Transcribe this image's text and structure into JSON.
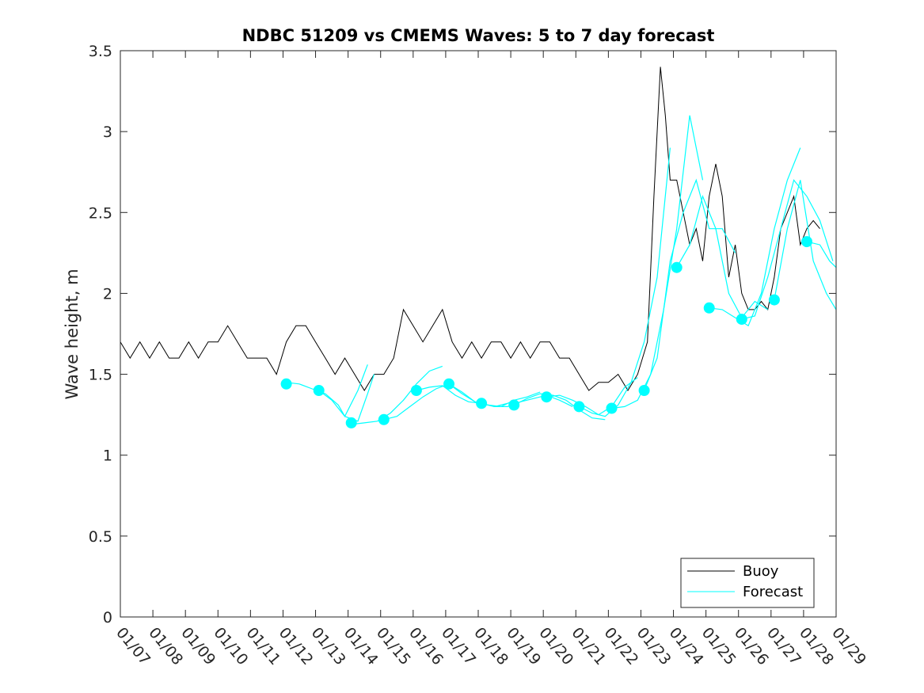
{
  "chart_data": {
    "type": "line",
    "title": "NDBC 51209 vs CMEMS Waves: 5 to 7 day forecast",
    "xlabel": "",
    "ylabel": "Wave height, m",
    "x_type": "date",
    "xlim": [
      0,
      22
    ],
    "ylim": [
      0,
      3.5
    ],
    "yticks": [
      0,
      0.5,
      1,
      1.5,
      2,
      2.5,
      3,
      3.5
    ],
    "ytick_labels": [
      "0",
      "0.5",
      "1",
      "1.5",
      "2",
      "2.5",
      "3",
      "3.5"
    ],
    "xticks": [
      0,
      1,
      2,
      3,
      4,
      5,
      6,
      7,
      8,
      9,
      10,
      11,
      12,
      13,
      14,
      15,
      16,
      17,
      18,
      19,
      20,
      21,
      22
    ],
    "xtick_labels": [
      "01/07",
      "01/08",
      "01/09",
      "01/10",
      "01/11",
      "01/12",
      "01/13",
      "01/14",
      "01/15",
      "01/16",
      "01/17",
      "01/18",
      "01/19",
      "01/20",
      "01/21",
      "01/22",
      "01/23",
      "01/24",
      "01/25",
      "01/26",
      "01/27",
      "01/28",
      "01/29"
    ],
    "x_note": "x values are days since 01/07",
    "legend": [
      "Buoy",
      "Forecast"
    ],
    "legend_position": "bottom-right",
    "colors": {
      "buoy": "#000000",
      "forecast": "#00ffff",
      "axes": "#262626"
    },
    "buoy": {
      "name": "Buoy",
      "x": [
        0,
        0.3,
        0.6,
        0.9,
        1.2,
        1.5,
        1.8,
        2.1,
        2.4,
        2.7,
        3.0,
        3.3,
        3.6,
        3.9,
        4.2,
        4.5,
        4.8,
        5.1,
        5.4,
        5.7,
        6.0,
        6.3,
        6.6,
        6.9,
        7.2,
        7.5,
        7.8,
        8.1,
        8.4,
        8.7,
        9.0,
        9.3,
        9.6,
        9.9,
        10.2,
        10.5,
        10.8,
        11.1,
        11.4,
        11.7,
        12.0,
        12.3,
        12.6,
        12.9,
        13.2,
        13.5,
        13.8,
        14.1,
        14.4,
        14.7,
        15.0,
        15.3,
        15.6,
        15.9,
        16.2,
        16.4,
        16.6,
        16.75,
        16.9,
        17.1,
        17.3,
        17.5,
        17.7,
        17.9,
        18.1,
        18.3,
        18.5,
        18.7,
        18.9,
        19.1,
        19.3,
        19.5,
        19.7,
        19.9,
        20.1,
        20.3,
        20.5,
        20.7,
        20.9,
        21.1,
        21.3,
        21.5
      ],
      "y": [
        1.7,
        1.6,
        1.7,
        1.6,
        1.7,
        1.6,
        1.6,
        1.7,
        1.6,
        1.7,
        1.7,
        1.8,
        1.7,
        1.6,
        1.6,
        1.6,
        1.5,
        1.7,
        1.8,
        1.8,
        1.7,
        1.6,
        1.5,
        1.6,
        1.5,
        1.4,
        1.5,
        1.5,
        1.6,
        1.9,
        1.8,
        1.7,
        1.8,
        1.9,
        1.7,
        1.6,
        1.7,
        1.6,
        1.7,
        1.7,
        1.6,
        1.7,
        1.6,
        1.7,
        1.7,
        1.6,
        1.6,
        1.5,
        1.4,
        1.45,
        1.45,
        1.5,
        1.4,
        1.5,
        1.7,
        2.6,
        3.4,
        3.1,
        2.7,
        2.7,
        2.5,
        2.3,
        2.4,
        2.2,
        2.6,
        2.8,
        2.6,
        2.1,
        2.3,
        2.0,
        1.9,
        1.9,
        1.95,
        1.9,
        2.1,
        2.4,
        2.5,
        2.6,
        2.3,
        2.4,
        2.45,
        2.4
      ]
    },
    "forecast": {
      "name": "Forecast",
      "segments": [
        {
          "x": [
            5.1,
            5.5,
            5.9,
            6.3,
            6.7,
            6.9,
            7.3,
            7.6
          ],
          "y": [
            1.45,
            1.44,
            1.41,
            1.38,
            1.31,
            1.24,
            1.4,
            1.56
          ]
        },
        {
          "x": [
            6.1,
            6.5,
            6.9,
            7.3,
            7.6,
            7.8
          ],
          "y": [
            1.4,
            1.34,
            1.24,
            1.21,
            1.38,
            1.5
          ]
        },
        {
          "x": [
            7.1,
            7.5,
            7.9,
            8.3,
            8.7,
            9.1,
            9.5,
            9.9
          ],
          "y": [
            1.19,
            1.2,
            1.21,
            1.26,
            1.34,
            1.44,
            1.52,
            1.55
          ]
        },
        {
          "x": [
            8.1,
            8.5,
            8.9,
            9.3,
            9.7,
            10.1,
            10.5,
            10.9
          ],
          "y": [
            1.22,
            1.24,
            1.3,
            1.36,
            1.41,
            1.44,
            1.39,
            1.33
          ]
        },
        {
          "x": [
            9.1,
            9.5,
            9.9,
            10.3,
            10.7,
            11.1,
            11.5,
            11.9
          ],
          "y": [
            1.4,
            1.42,
            1.43,
            1.37,
            1.33,
            1.32,
            1.3,
            1.32
          ]
        },
        {
          "x": [
            10.1,
            10.5,
            10.9,
            11.3,
            11.7,
            12.1,
            12.5,
            12.9
          ],
          "y": [
            1.44,
            1.38,
            1.33,
            1.31,
            1.3,
            1.34,
            1.36,
            1.39
          ]
        },
        {
          "x": [
            11.1,
            11.5,
            11.9,
            12.3,
            12.7,
            13.1,
            13.5,
            13.9
          ],
          "y": [
            1.32,
            1.3,
            1.3,
            1.33,
            1.35,
            1.37,
            1.34,
            1.3
          ]
        },
        {
          "x": [
            12.1,
            12.5,
            12.9,
            13.3,
            13.7,
            14.1,
            14.5,
            14.9
          ],
          "y": [
            1.31,
            1.35,
            1.38,
            1.37,
            1.34,
            1.28,
            1.23,
            1.22
          ]
        },
        {
          "x": [
            13.1,
            13.5,
            13.9,
            14.3,
            14.7,
            15.1,
            15.5,
            15.9
          ],
          "y": [
            1.36,
            1.37,
            1.34,
            1.3,
            1.25,
            1.3,
            1.42,
            1.48
          ]
        },
        {
          "x": [
            14.1,
            14.5,
            14.9,
            15.3,
            15.7,
            16.1,
            16.5,
            16.9
          ],
          "y": [
            1.3,
            1.26,
            1.24,
            1.31,
            1.45,
            1.7,
            2.1,
            2.9
          ]
        },
        {
          "x": [
            15.1,
            15.5,
            15.9,
            16.3,
            16.7,
            17.1,
            17.5,
            17.9
          ],
          "y": [
            1.29,
            1.3,
            1.34,
            1.5,
            1.9,
            2.4,
            3.1,
            2.7
          ]
        },
        {
          "x": [
            16.1,
            16.5,
            16.9,
            17.3,
            17.7,
            18.1,
            18.5,
            18.9
          ],
          "y": [
            1.4,
            1.6,
            2.2,
            2.5,
            2.7,
            2.4,
            2.4,
            2.25
          ]
        },
        {
          "x": [
            17.1,
            17.5,
            17.9,
            18.3,
            18.7,
            19.1,
            19.5,
            19.9
          ],
          "y": [
            2.16,
            2.3,
            2.6,
            2.4,
            2.0,
            1.85,
            1.95,
            1.9
          ]
        },
        {
          "x": [
            18.1,
            18.5,
            18.9,
            19.3,
            19.7,
            20.1,
            20.5,
            20.9
          ],
          "y": [
            1.91,
            1.9,
            1.85,
            1.8,
            2.0,
            2.4,
            2.7,
            2.9
          ]
        },
        {
          "x": [
            19.1,
            19.5,
            19.9,
            20.3,
            20.7,
            21.1,
            21.5,
            21.9
          ],
          "y": [
            1.84,
            1.86,
            2.1,
            2.4,
            2.7,
            2.6,
            2.45,
            2.2
          ]
        },
        {
          "x": [
            20.1,
            20.5,
            20.9,
            21.3,
            21.7,
            22.0
          ],
          "y": [
            1.96,
            2.4,
            2.7,
            2.2,
            2.0,
            1.9
          ]
        },
        {
          "x": [
            21.1,
            21.5,
            21.8,
            22.0
          ],
          "y": [
            2.32,
            2.3,
            2.2,
            2.16
          ]
        }
      ],
      "markers": {
        "x": [
          5.1,
          6.1,
          7.1,
          8.1,
          9.1,
          10.1,
          11.1,
          12.1,
          13.1,
          14.1,
          15.1,
          16.1,
          17.1,
          18.1,
          19.1,
          20.1,
          21.1
        ],
        "y": [
          1.44,
          1.4,
          1.2,
          1.22,
          1.4,
          1.44,
          1.32,
          1.31,
          1.36,
          1.3,
          1.29,
          1.4,
          2.16,
          1.91,
          1.84,
          1.96,
          2.32
        ]
      }
    }
  }
}
